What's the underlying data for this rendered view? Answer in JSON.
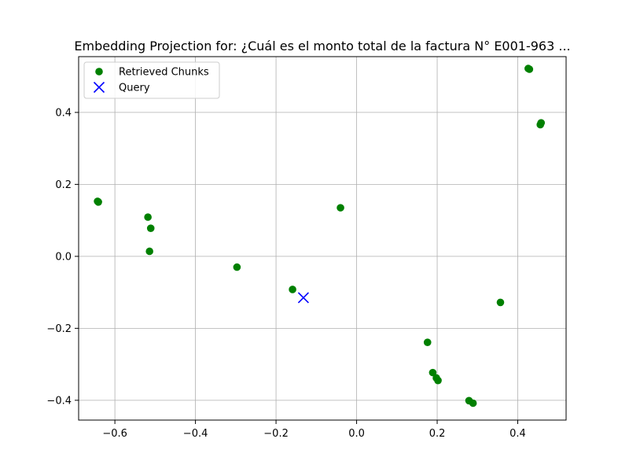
{
  "chart_data": {
    "type": "scatter",
    "title": "Embedding Projection for: ¿Cuál es el monto total de la factura N° E001-963 ...",
    "xlabel": "",
    "ylabel": "",
    "xlim": [
      -0.69,
      0.52
    ],
    "ylim": [
      -0.455,
      0.555
    ],
    "xticks": [
      -0.6,
      -0.4,
      -0.2,
      0.0,
      0.2,
      0.4
    ],
    "xtick_labels": [
      "−0.6",
      "−0.4",
      "−0.2",
      "0.0",
      "0.2",
      "0.4"
    ],
    "yticks": [
      -0.4,
      -0.2,
      0.0,
      0.2,
      0.4
    ],
    "ytick_labels": [
      "−0.4",
      "−0.2",
      "0.0",
      "0.2",
      "0.4"
    ],
    "grid": true,
    "legend_position": "top-left",
    "series": [
      {
        "name": "Retrieved Chunks",
        "marker": "circle",
        "color": "#008000",
        "points": [
          {
            "x": -0.643,
            "y": 0.153
          },
          {
            "x": -0.641,
            "y": 0.151
          },
          {
            "x": -0.518,
            "y": 0.109
          },
          {
            "x": -0.511,
            "y": 0.078
          },
          {
            "x": -0.514,
            "y": 0.014
          },
          {
            "x": -0.297,
            "y": -0.03
          },
          {
            "x": -0.159,
            "y": -0.092
          },
          {
            "x": -0.04,
            "y": 0.135
          },
          {
            "x": 0.176,
            "y": -0.239
          },
          {
            "x": 0.189,
            "y": -0.323
          },
          {
            "x": 0.198,
            "y": -0.338
          },
          {
            "x": 0.202,
            "y": -0.345
          },
          {
            "x": 0.279,
            "y": -0.401
          },
          {
            "x": 0.289,
            "y": -0.408
          },
          {
            "x": 0.357,
            "y": -0.128
          },
          {
            "x": 0.426,
            "y": 0.522
          },
          {
            "x": 0.429,
            "y": 0.52
          },
          {
            "x": 0.456,
            "y": 0.366
          },
          {
            "x": 0.458,
            "y": 0.371
          }
        ]
      },
      {
        "name": "Query",
        "marker": "x",
        "color": "#0000ff",
        "points": [
          {
            "x": -0.132,
            "y": -0.115
          }
        ]
      }
    ]
  }
}
